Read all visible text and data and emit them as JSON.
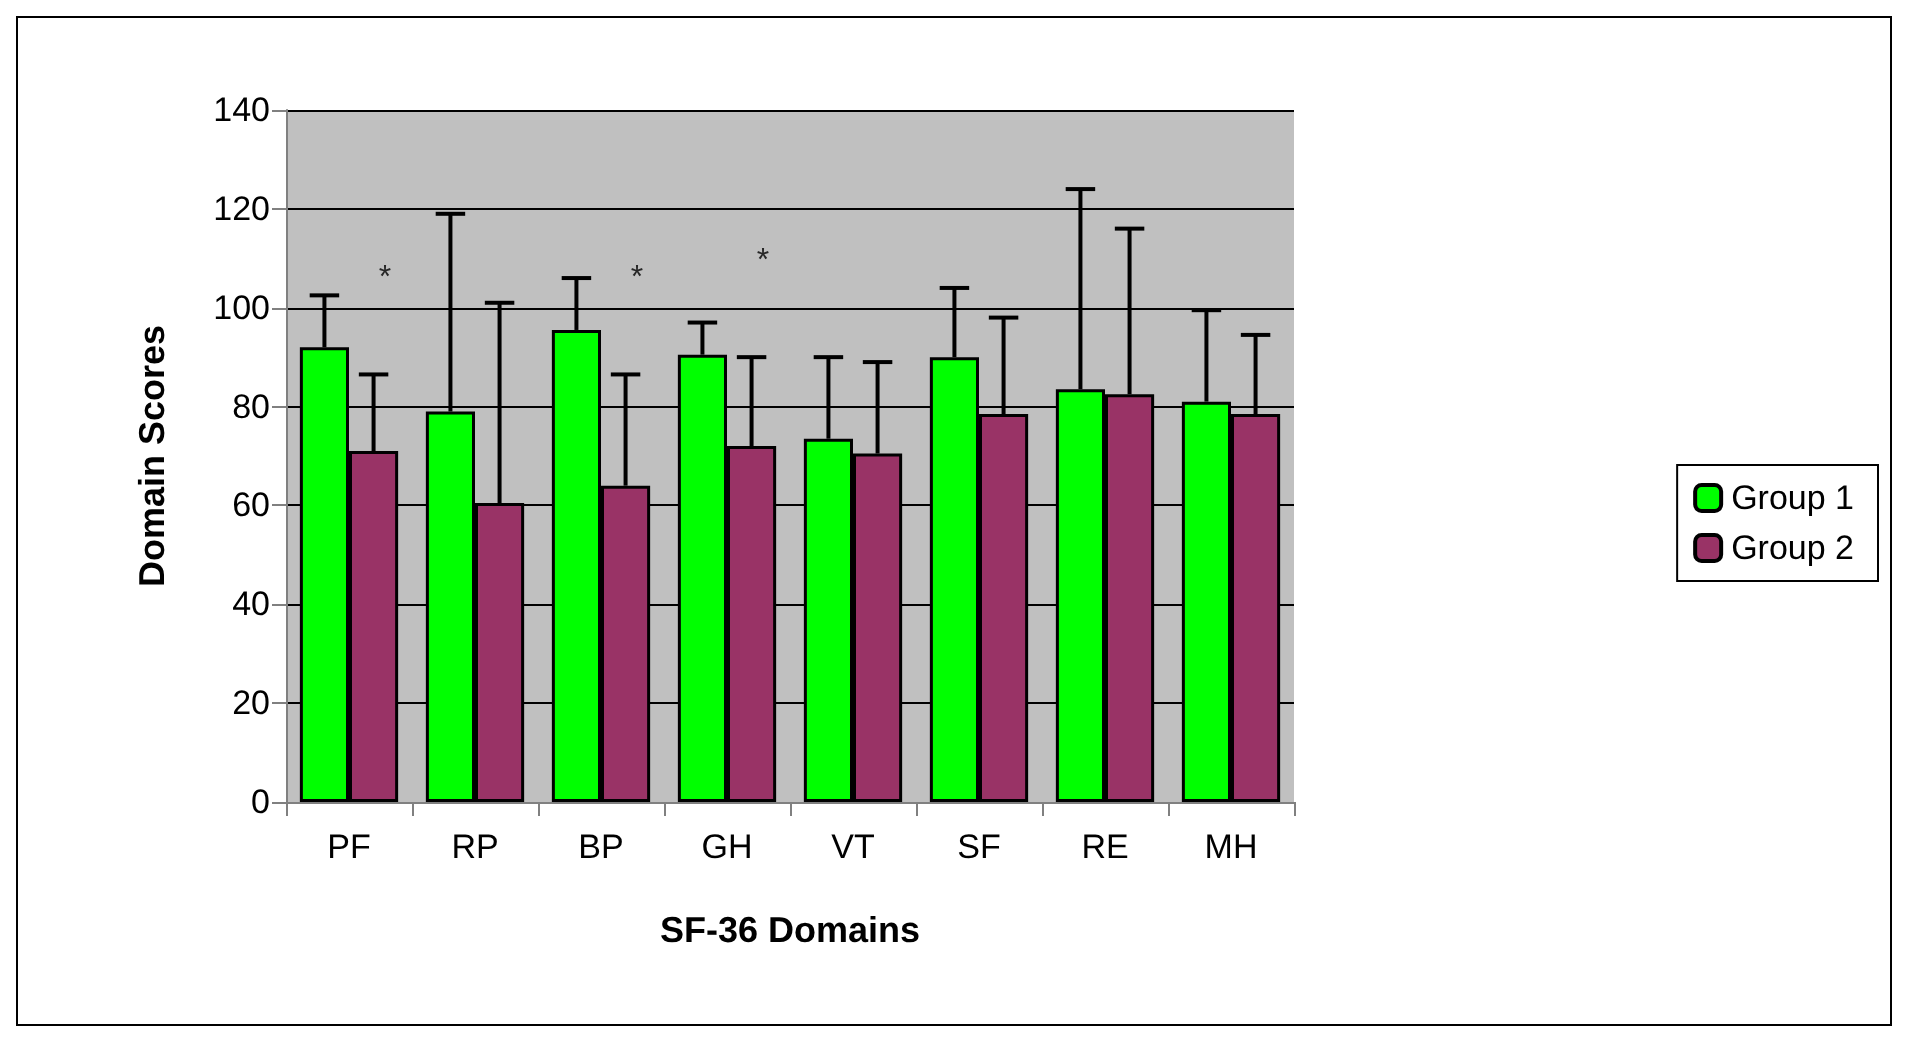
{
  "chart_data": {
    "type": "bar",
    "xlabel": "SF-36 Domains",
    "ylabel": "Domain Scores",
    "categories": [
      "PF",
      "RP",
      "BP",
      "GH",
      "VT",
      "SF",
      "RE",
      "MH"
    ],
    "series": [
      {
        "name": "Group 1",
        "color": "#00ff00",
        "values": [
          92,
          79,
          95.5,
          90.5,
          73.5,
          90,
          83.5,
          81
        ],
        "errors": [
          [
            92,
            102.5
          ],
          [
            79,
            119
          ],
          [
            95.5,
            106
          ],
          [
            90.5,
            97
          ],
          [
            73.5,
            90
          ],
          [
            90,
            104
          ],
          [
            83.5,
            124
          ],
          [
            81,
            99.5
          ]
        ]
      },
      {
        "name": "Group 2",
        "color": "#993366",
        "values": [
          71,
          60.5,
          64,
          72,
          70.5,
          78.5,
          82.5,
          78.5
        ],
        "errors": [
          [
            71,
            86.5
          ],
          [
            60.5,
            101
          ],
          [
            64,
            86.5
          ],
          [
            72,
            90
          ],
          [
            70.5,
            89
          ],
          [
            78.5,
            98
          ],
          [
            82.5,
            116
          ],
          [
            78.5,
            94.5
          ]
        ]
      }
    ],
    "ylim": [
      0,
      140
    ],
    "yticks": [
      0,
      20,
      40,
      60,
      80,
      100,
      120,
      140
    ],
    "grid": "y",
    "legend": "right",
    "annotations": [
      {
        "text": "*",
        "x": "PF",
        "y": 86.5
      },
      {
        "text": "*",
        "x": "BP",
        "y": 86.5
      },
      {
        "text": "*",
        "x": "GH",
        "y": 90
      }
    ]
  }
}
